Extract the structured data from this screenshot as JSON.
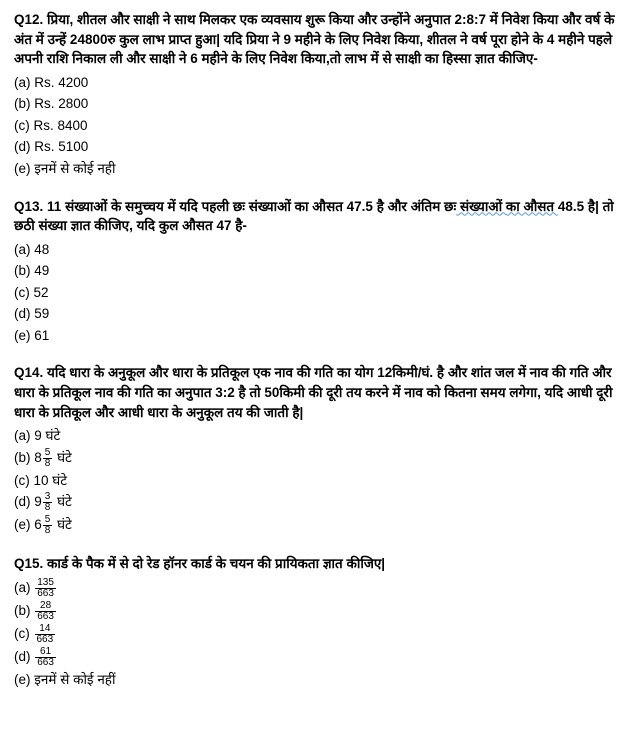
{
  "q12": {
    "label": "Q12.",
    "text": "प्रिया, शीतल और साक्षी ने साथ मिलकर एक व्यवसाय शुरू किया और उन्होंने अनुपात 2:8:7 में निवेश किया और वर्ष के अंत में उन्हें 24800रु कुल लाभ प्राप्त हुआ| यदि प्रिया ने 9 महीने के लिए निवेश किया, शीतल ने वर्ष पूरा होने के 4 महीने पहले अपनी राशि निकाल ली और साक्षी ने 6 महीने के लिए निवेश किया,तो लाभ में से साक्षी का हिस्सा ज्ञात कीजिए-",
    "opts": {
      "a": "(a) Rs. 4200",
      "b": "(b) Rs. 2800",
      "c": "(c) Rs. 8400",
      "d": "(d) Rs. 5100",
      "e": "(e) इनमें से कोई नही"
    }
  },
  "q13": {
    "label": "Q13.",
    "text_pre": "11 संख्याओं के समुच्चय में यदि पहली छः संख्याओं का औसत 47.5 है और अंतिम छः",
    "text_wavy1": " संख्याओं ",
    "text_mid1": "का औसत ",
    "text_mid2": "48.5 है| तो छठी संख्या ज्ञात कीजिए, यदि कुल औसत 47 है-",
    "underline_word": "",
    "opts": {
      "a": "(a) 48",
      "b": "(b) 49",
      "c": "(c) 52",
      "d": "(d) 59",
      "e": "(e) 61"
    }
  },
  "q14": {
    "label": "Q14.",
    "text": "यदि धारा के अनुकूल और धारा के प्रतिकूल एक नाव की गति का योग  12किमी/घं. है और शांत जल में नाव की गति और धारा के प्रतिकूल नाव की गति का अनुपात 3:2 है तो  50किमी की दूरी तय करने में नाव को कितना समय लगेगा, यदि आधी दूरी धारा के प्रतिकूल और आधी धारा के अनुकूल तय की जाती है|",
    "opts": {
      "a": "(a) 9 घंटे",
      "b_pre": "(b) 8",
      "b_num": "5",
      "b_den": "8",
      "b_post": " घंटे",
      "c": "(c) 10 घंटे",
      "d_pre": "(d) 9",
      "d_num": "3",
      "d_den": "8",
      "d_post": " घंटे",
      "e_pre": "(e) 6",
      "e_num": "5",
      "e_den": "8",
      "e_post": " घंटे"
    }
  },
  "q15": {
    "label": "Q15.",
    "text": "कार्ड के पैक में से दो रेड हॉनर कार्ड के चयन की प्रायिकता ज्ञात कीजिए|",
    "opts": {
      "a_pre": "(a) ",
      "a_num": "135",
      "a_den": "663",
      "b_pre": "(b) ",
      "b_num": "28",
      "b_den": "663",
      "c_pre": "(c) ",
      "c_num": "14",
      "c_den": "663",
      "d_pre": "(d) ",
      "d_num": "61",
      "d_den": "663",
      "e": "(e) इनमें से कोई नहीं"
    }
  }
}
